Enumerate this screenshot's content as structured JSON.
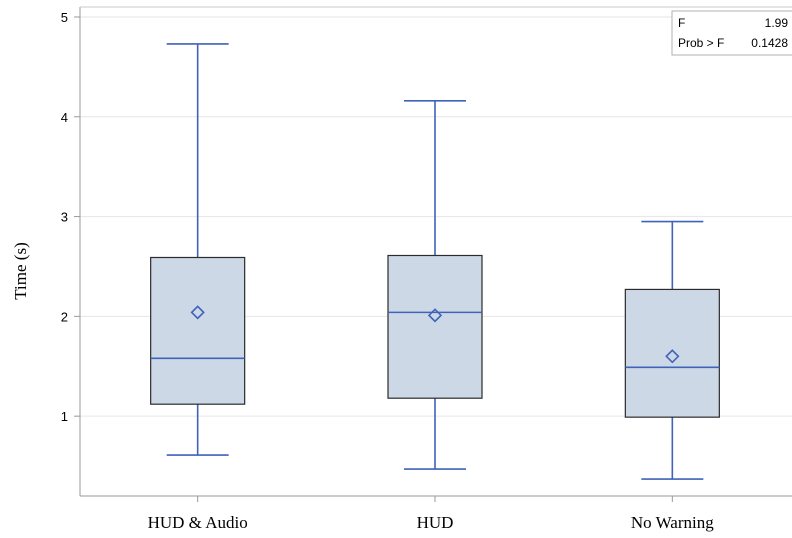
{
  "chart_data": {
    "type": "box",
    "ylabel": "Time (s)",
    "xlabel": "",
    "ylim": [
      0.2,
      5.1
    ],
    "yticks": [
      1,
      2,
      3,
      4,
      5
    ],
    "grid": true,
    "categories": [
      "HUD & Audio",
      "HUD",
      "No Warning"
    ],
    "boxes": [
      {
        "category": "HUD & Audio",
        "min": 0.61,
        "q1": 1.12,
        "median": 1.58,
        "q3": 2.59,
        "max": 4.73,
        "mean": 2.04
      },
      {
        "category": "HUD",
        "min": 0.47,
        "q1": 1.18,
        "median": 2.04,
        "q3": 2.61,
        "max": 4.16,
        "mean": 2.01
      },
      {
        "category": "No Warning",
        "min": 0.37,
        "q1": 0.99,
        "median": 1.49,
        "q3": 2.27,
        "max": 2.95,
        "mean": 1.6
      }
    ],
    "colors": {
      "box_fill": "#cdd8e7",
      "box_edge": "#2b2b2b",
      "whisker": "#3f63b8",
      "median": "#3f63b8",
      "mean_marker": "#3f63b8",
      "grid": "#e6e6e6",
      "axis": "#9a9a9a"
    },
    "stats_box": {
      "rows": [
        {
          "label": "F",
          "value": "1.99"
        },
        {
          "label": "Prob > F",
          "value": "0.1428"
        }
      ]
    }
  }
}
